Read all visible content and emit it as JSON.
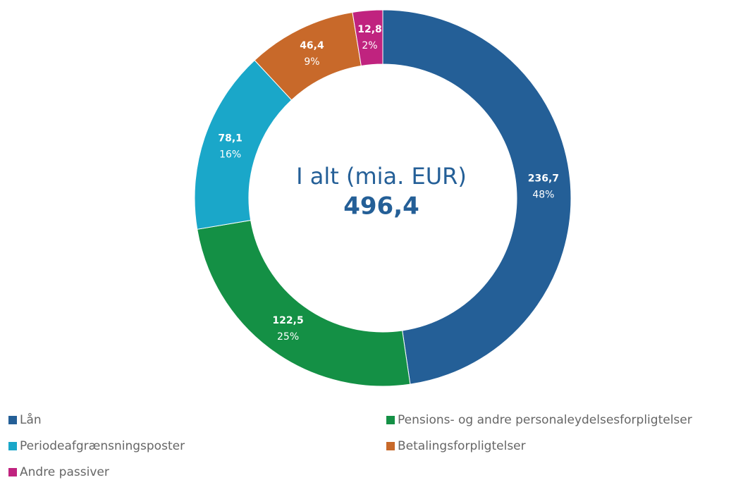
{
  "chart_data": {
    "type": "donut",
    "center_title": "I alt (mia. EUR)",
    "total": 496.4,
    "total_label": "496,4",
    "categories": [
      "Lån",
      "Pensions- og andre personaleydelsesforpligtelser",
      "Periodeafgrænsningsposter",
      "Betalingsforpligtelser",
      "Andre passiver"
    ],
    "values": [
      236.7,
      122.5,
      78.1,
      46.4,
      12.8
    ],
    "value_labels": [
      "236,7",
      "122,5",
      "78,1",
      "46,4",
      "12,8"
    ],
    "percentages": [
      48,
      25,
      16,
      9,
      2
    ],
    "percentage_labels": [
      "48%",
      "25%",
      "16%",
      "9%",
      "2%"
    ],
    "colors": [
      "#245f97",
      "#149045",
      "#1aa7c9",
      "#c8692a",
      "#c0237f"
    ],
    "legend": "bottom"
  }
}
